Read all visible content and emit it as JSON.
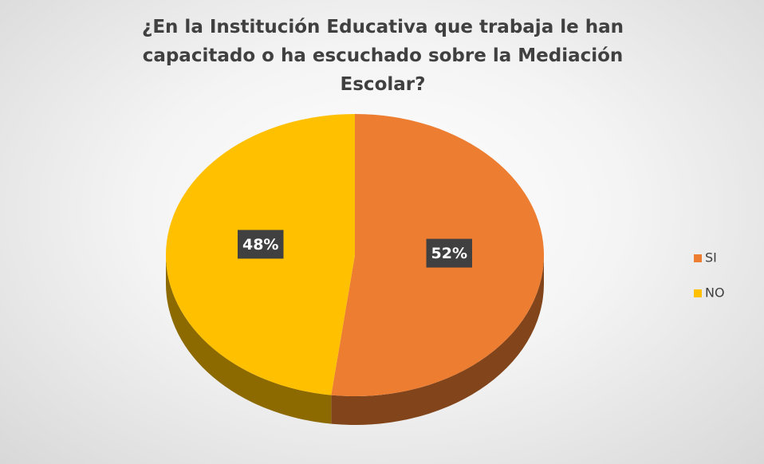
{
  "chart_data": {
    "type": "pie",
    "title": "¿En la Institución Educativa que trabaja le han capacitado o ha escuchado sobre la Mediación Escolar?",
    "categories": [
      "SI",
      "NO"
    ],
    "values": [
      52,
      48
    ],
    "value_labels": [
      "52%",
      "48%"
    ],
    "colors": [
      "#ed7d31",
      "#ffc000"
    ],
    "legend": "right"
  }
}
